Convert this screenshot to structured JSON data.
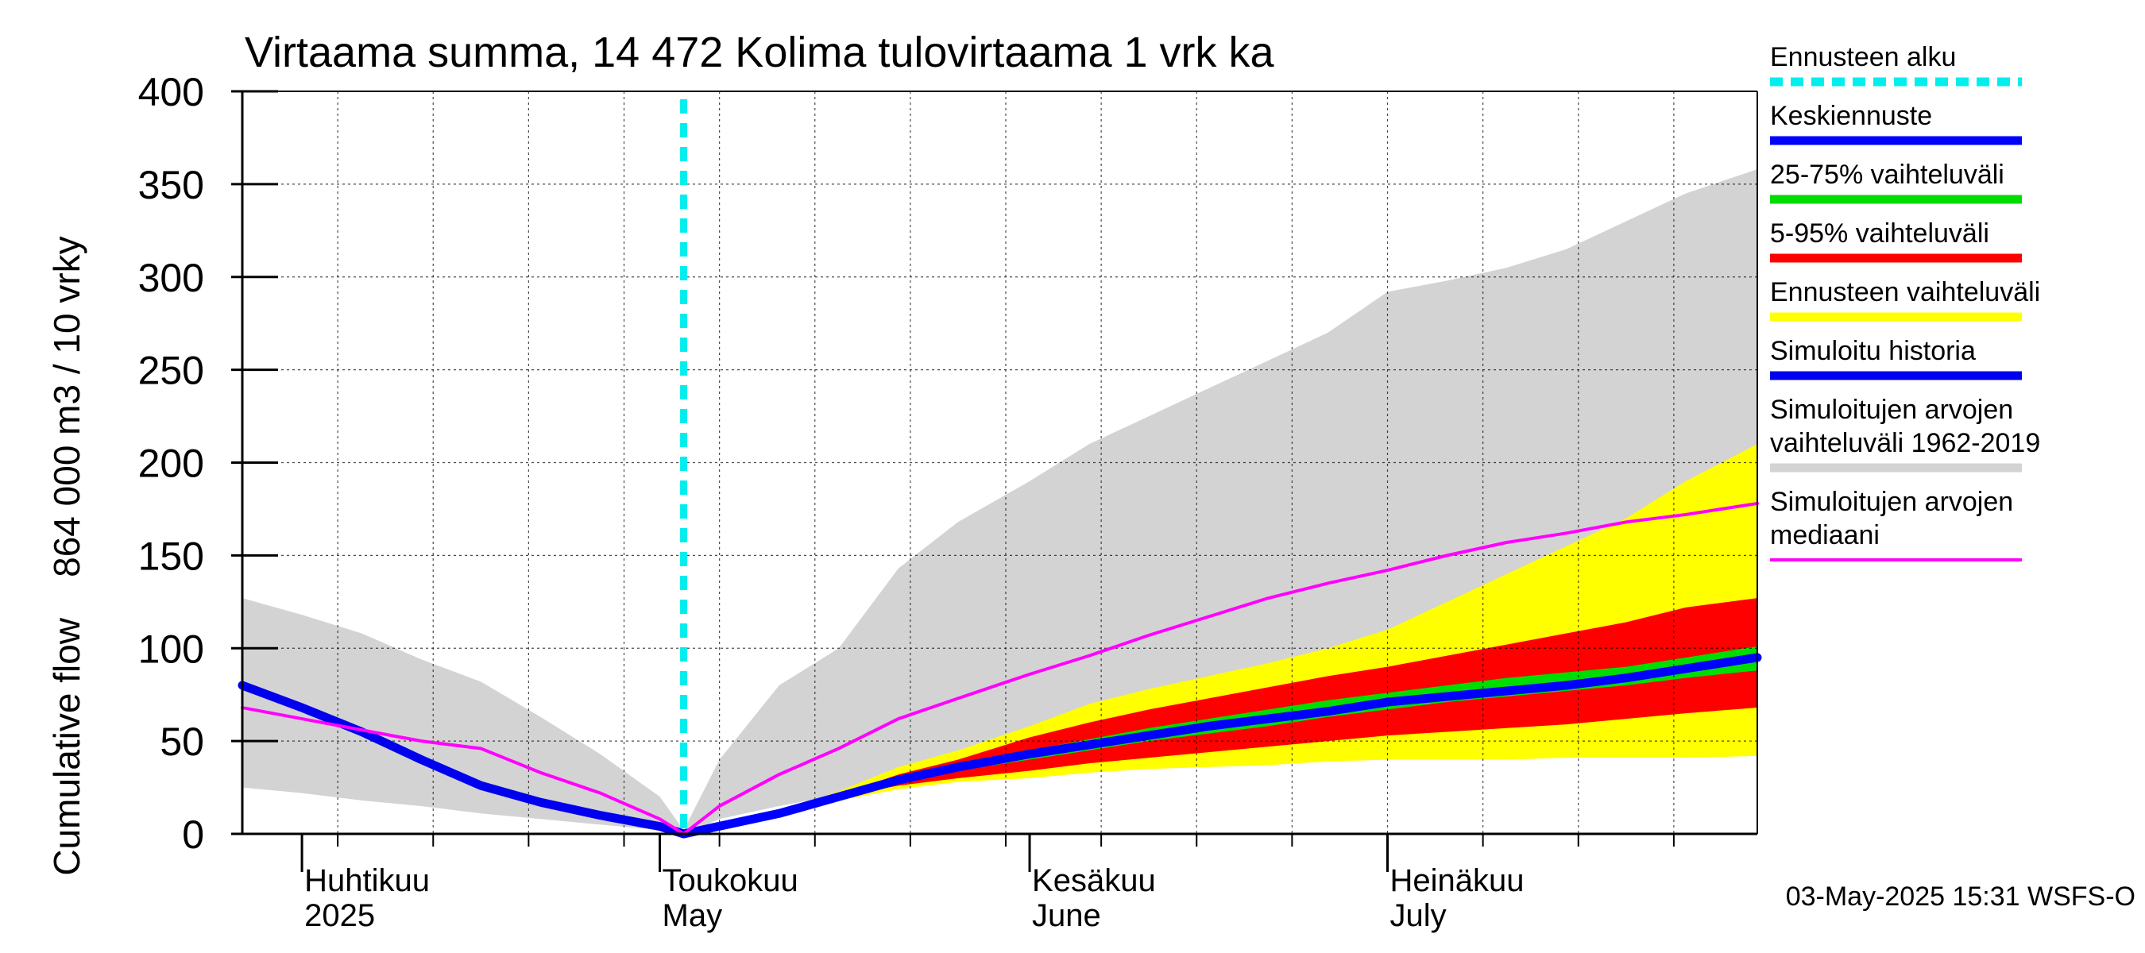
{
  "chart_data": {
    "type": "area",
    "title": "Virtaama summa, 14 472 Kolima tulovirtaama 1 vrk ka",
    "ylabel": "Cumulative flow    864 000 m3 / 10 vrky",
    "ylim": [
      0,
      400
    ],
    "xlim": [
      "2025-03-27",
      "2025-08-01"
    ],
    "grid": true,
    "y_ticks": [
      0,
      50,
      100,
      150,
      200,
      250,
      300,
      350,
      400
    ],
    "month_labels": [
      {
        "date": "2025-04-01",
        "fi": "Huhtikuu",
        "en": "2025"
      },
      {
        "date": "2025-05-01",
        "fi": "Toukokuu",
        "en": "May"
      },
      {
        "date": "2025-06-01",
        "fi": "Kesäkuu",
        "en": "June"
      },
      {
        "date": "2025-07-01",
        "fi": "Heinäkuu",
        "en": "July"
      }
    ],
    "forecast_start": "2025-05-03",
    "legend_position": "right",
    "legend": [
      {
        "label": "Ennusteen alku",
        "color": "#00eeee",
        "style": "dashed"
      },
      {
        "label": "Keskiennuste",
        "color": "#0000ff",
        "style": "solid"
      },
      {
        "label": "25-75% vaihteluväli",
        "color": "#00dd00",
        "style": "solid"
      },
      {
        "label": "5-95% vaihteluväli",
        "color": "#ff0000",
        "style": "solid"
      },
      {
        "label": "Ennusteen vaihteluväli",
        "color": "#ffff00",
        "style": "solid"
      },
      {
        "label": "Simuloitu historia",
        "color": "#0000ee",
        "style": "solid"
      },
      {
        "label": "Simuloitujen arvojen vaihteluväli 1962-2019",
        "lines": [
          "Simuloitujen arvojen",
          "vaihteluväli 1962-2019"
        ],
        "color": "#d3d3d3",
        "style": "solid"
      },
      {
        "label": "Simuloitujen arvojen mediaani",
        "lines": [
          "Simuloitujen arvojen",
          "mediaani"
        ],
        "color": "#ff00ff",
        "style": "solid"
      }
    ],
    "footer": "03-May-2025 15:31 WSFS-O",
    "series": [
      {
        "name": "Simuloitujen arvojen vaihteluväli 1962-2019",
        "kind": "band",
        "color": "#d3d3d3",
        "x": [
          "2025-03-27",
          "2025-04-01",
          "2025-04-06",
          "2025-04-11",
          "2025-04-16",
          "2025-04-21",
          "2025-04-26",
          "2025-05-01",
          "2025-05-03",
          "2025-05-06",
          "2025-05-11",
          "2025-05-16",
          "2025-05-21",
          "2025-05-26",
          "2025-06-01",
          "2025-06-06",
          "2025-06-11",
          "2025-06-16",
          "2025-06-21",
          "2025-06-26",
          "2025-07-01",
          "2025-07-06",
          "2025-07-11",
          "2025-07-16",
          "2025-07-21",
          "2025-07-26",
          "2025-08-01"
        ],
        "low": [
          25,
          22,
          18,
          15,
          11,
          8,
          5,
          2,
          0,
          8,
          15,
          21,
          28,
          30,
          30,
          33,
          35,
          38,
          40,
          40,
          40,
          44,
          46,
          47,
          48,
          48,
          48
        ],
        "high": [
          127,
          118,
          108,
          94,
          82,
          63,
          43,
          20,
          2,
          40,
          80,
          100,
          143,
          168,
          190,
          210,
          225,
          240,
          255,
          270,
          292,
          298,
          305,
          315,
          330,
          345,
          358
        ]
      },
      {
        "name": "Ennusteen vaihteluväli",
        "kind": "band",
        "color": "#ffff00",
        "x": [
          "2025-05-03",
          "2025-05-11",
          "2025-05-16",
          "2025-05-21",
          "2025-05-26",
          "2025-06-01",
          "2025-06-06",
          "2025-06-11",
          "2025-06-16",
          "2025-06-21",
          "2025-06-26",
          "2025-07-01",
          "2025-07-06",
          "2025-07-11",
          "2025-07-16",
          "2025-07-21",
          "2025-07-26",
          "2025-08-01"
        ],
        "low": [
          0,
          10,
          18,
          24,
          28,
          30,
          33,
          35,
          36,
          37,
          39,
          40,
          40,
          40,
          41,
          41,
          41,
          42
        ],
        "high": [
          0,
          12,
          23,
          36,
          45,
          58,
          70,
          78,
          85,
          92,
          100,
          110,
          125,
          140,
          155,
          170,
          190,
          210
        ]
      },
      {
        "name": "5-95% vaihteluväli",
        "kind": "band",
        "color": "#ff0000",
        "x": [
          "2025-05-03",
          "2025-05-11",
          "2025-05-16",
          "2025-05-21",
          "2025-05-26",
          "2025-06-01",
          "2025-06-06",
          "2025-06-11",
          "2025-06-16",
          "2025-06-21",
          "2025-06-26",
          "2025-07-01",
          "2025-07-06",
          "2025-07-11",
          "2025-07-16",
          "2025-07-21",
          "2025-07-26",
          "2025-08-01"
        ],
        "low": [
          0,
          11,
          20,
          26,
          30,
          34,
          38,
          41,
          44,
          47,
          50,
          53,
          55,
          57,
          59,
          62,
          65,
          68
        ],
        "high": [
          0,
          11,
          21,
          32,
          40,
          52,
          60,
          67,
          73,
          79,
          85,
          90,
          96,
          102,
          108,
          114,
          122,
          127
        ]
      },
      {
        "name": "25-75% vaihteluväli",
        "kind": "band",
        "color": "#00dd00",
        "x": [
          "2025-05-03",
          "2025-05-11",
          "2025-05-16",
          "2025-05-21",
          "2025-05-26",
          "2025-06-01",
          "2025-06-06",
          "2025-06-11",
          "2025-06-16",
          "2025-06-21",
          "2025-06-26",
          "2025-07-01",
          "2025-07-06",
          "2025-07-11",
          "2025-07-16",
          "2025-07-21",
          "2025-07-26",
          "2025-08-01"
        ],
        "low": [
          0,
          11,
          20,
          28,
          34,
          40,
          45,
          50,
          54,
          58,
          63,
          67,
          71,
          74,
          77,
          80,
          84,
          88
        ],
        "high": [
          0,
          11,
          20,
          30,
          37,
          45,
          51,
          57,
          62,
          67,
          72,
          76,
          80,
          84,
          87,
          90,
          95,
          101
        ]
      },
      {
        "name": "Keskiennuste",
        "kind": "line",
        "color": "#0000ff",
        "x": [
          "2025-05-03",
          "2025-05-11",
          "2025-05-16",
          "2025-05-21",
          "2025-05-26",
          "2025-06-01",
          "2025-06-06",
          "2025-06-11",
          "2025-06-16",
          "2025-06-21",
          "2025-06-26",
          "2025-07-01",
          "2025-07-06",
          "2025-07-11",
          "2025-07-16",
          "2025-07-21",
          "2025-07-26",
          "2025-08-01"
        ],
        "values": [
          0,
          11,
          20,
          29,
          36,
          43,
          48,
          53,
          58,
          62,
          66,
          71,
          74,
          77,
          80,
          84,
          89,
          95
        ]
      },
      {
        "name": "Simuloitu historia",
        "kind": "line",
        "color": "#0000ee",
        "x": [
          "2025-03-27",
          "2025-04-01",
          "2025-04-06",
          "2025-04-11",
          "2025-04-16",
          "2025-04-21",
          "2025-04-26",
          "2025-05-01",
          "2025-05-03"
        ],
        "values": [
          80,
          68,
          55,
          40,
          26,
          17,
          10,
          4,
          0
        ]
      },
      {
        "name": "Simuloitujen arvojen mediaani",
        "kind": "line",
        "color": "#ff00ff",
        "x": [
          "2025-03-27",
          "2025-04-01",
          "2025-04-06",
          "2025-04-11",
          "2025-04-16",
          "2025-04-21",
          "2025-04-26",
          "2025-05-01",
          "2025-05-03",
          "2025-05-06",
          "2025-05-11",
          "2025-05-16",
          "2025-05-21",
          "2025-05-26",
          "2025-06-01",
          "2025-06-06",
          "2025-06-11",
          "2025-06-16",
          "2025-06-21",
          "2025-06-26",
          "2025-07-01",
          "2025-07-06",
          "2025-07-11",
          "2025-07-16",
          "2025-07-21",
          "2025-07-26",
          "2025-08-01"
        ],
        "values": [
          68,
          62,
          56,
          50,
          46,
          33,
          22,
          8,
          0,
          15,
          32,
          46,
          62,
          73,
          86,
          96,
          107,
          117,
          127,
          135,
          142,
          150,
          157,
          162,
          168,
          172,
          178
        ]
      }
    ]
  }
}
